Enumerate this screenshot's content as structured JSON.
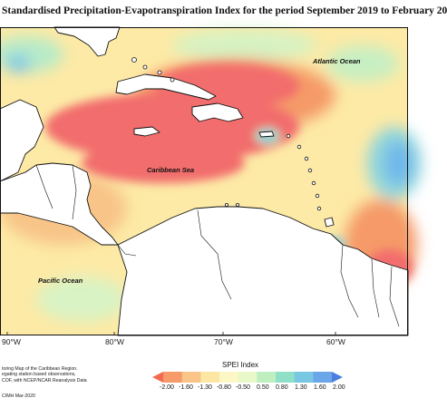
{
  "title": "Standardised Precipitation-Evapotranspiration Index for the period September 2019 to February 20",
  "map": {
    "labels": {
      "atlantic": "Atlantic Ocean",
      "caribbean": "Caribbean Sea",
      "pacific": "Pacific Ocean"
    },
    "longitude_ticks": [
      "90°W",
      "80°W",
      "70°W",
      "60°W"
    ]
  },
  "legend": {
    "title": "SPEI Index",
    "ticks": [
      "-2.00",
      "-1.60",
      "-1.30",
      "-0.80",
      "-0.50",
      "0.50",
      "0.80",
      "1.30",
      "1.60",
      "2.00"
    ],
    "colors": [
      "#f26a4f",
      "#f59a68",
      "#f8c487",
      "#fbe7a3",
      "#fdf7c6",
      "#e9f8c8",
      "#bfeec1",
      "#8fe0c6",
      "#79c8e3",
      "#6aa6e8",
      "#4a7fe0"
    ]
  },
  "footnote": {
    "line1": "toring Map of the Caribbean Region.",
    "line2": "egating station based observations,",
    "line3": "COF, with NCEP/NCAR Reanalysis Data"
  },
  "credit": "CIMH Mar-2020",
  "colors": {
    "dry_strong": "#f26d6d",
    "dry": "#f7a66b",
    "near_normal": "#fde9a4",
    "wet": "#9be3c8",
    "wet_strong": "#6fb7ea",
    "land": "#ffffff"
  }
}
